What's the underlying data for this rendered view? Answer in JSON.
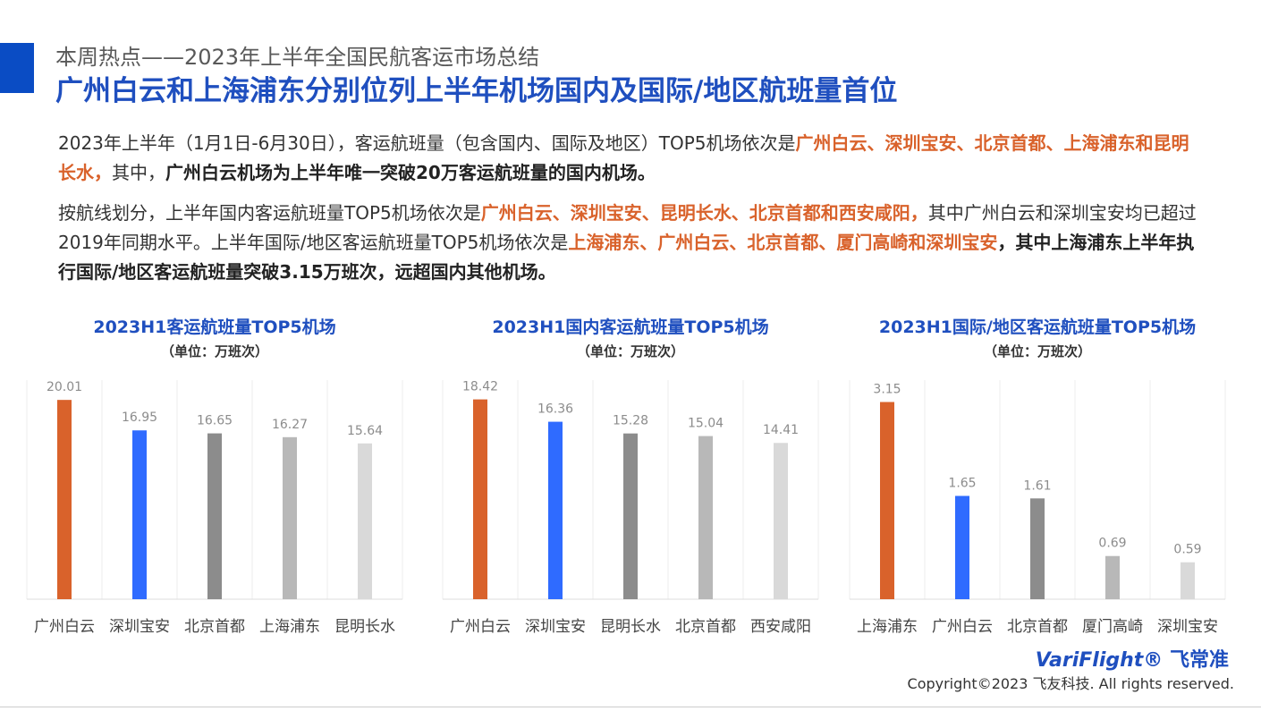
{
  "header": {
    "subtitle": "本周热点——2023年上半年全国民航客运市场总结",
    "title": "广州白云和上海浦东分别位列上半年机场国内及国际/地区航班量首位"
  },
  "paragraphs": [
    [
      {
        "text": "2023年上半年（1月1日-6月30日），客运航班量（包含国内、国际及地区）TOP5机场依次是",
        "style": "plain"
      },
      {
        "text": "广州白云、深圳宝安、北京首都、上海浦东和昆明长水，",
        "style": "highlight"
      },
      {
        "text": "其中，",
        "style": "plain"
      },
      {
        "text": "广州白云机场为上半年唯一突破20万客运航班量的国内机场。",
        "style": "bold"
      }
    ],
    [
      {
        "text": "按航线划分，上半年国内客运航班量TOP5机场依次是",
        "style": "plain"
      },
      {
        "text": "广州白云、深圳宝安、昆明长水、北京首都和西安咸阳，",
        "style": "highlight"
      },
      {
        "text": "其中广州白云和深圳宝安均已超过2019年同期水平。上半年国际/地区客运航班量TOP5机场依次是",
        "style": "plain"
      },
      {
        "text": "上海浦东、广州白云、北京首都、厦门高崎和深圳宝安",
        "style": "highlight"
      },
      {
        "text": "，其中上海浦东上半年执行国际/地区客运航班量突破3.15万班次，远超国内其他机场。",
        "style": "bold"
      }
    ]
  ],
  "chart_data": [
    {
      "type": "bar",
      "title": "2023H1客运航班量TOP5机场",
      "subtitle": "（单位：万班次）",
      "categories": [
        "广州白云",
        "深圳宝安",
        "北京首都",
        "上海浦东",
        "昆明长水"
      ],
      "values": [
        20.01,
        16.95,
        16.65,
        16.27,
        15.64
      ],
      "colors": [
        "#d9622b",
        "#2f6bff",
        "#8c8c8c",
        "#b8b8b8",
        "#d9d9d9"
      ],
      "ylim": [
        0,
        22
      ]
    },
    {
      "type": "bar",
      "title": "2023H1国内客运航班量TOP5机场",
      "subtitle": "（单位：万班次）",
      "categories": [
        "广州白云",
        "深圳宝安",
        "昆明长水",
        "北京首都",
        "西安咸阳"
      ],
      "values": [
        18.42,
        16.36,
        15.28,
        15.04,
        14.41
      ],
      "colors": [
        "#d9622b",
        "#2f6bff",
        "#8c8c8c",
        "#b8b8b8",
        "#d9d9d9"
      ],
      "ylim": [
        0,
        20.2
      ]
    },
    {
      "type": "bar",
      "title": "2023H1国际/地区客运航班量TOP5机场",
      "subtitle": "（单位：万班次）",
      "categories": [
        "上海浦东",
        "广州白云",
        "北京首都",
        "厦门高崎",
        "深圳宝安"
      ],
      "values": [
        3.15,
        1.65,
        1.61,
        0.69,
        0.59
      ],
      "colors": [
        "#d9622b",
        "#2f6bff",
        "#8c8c8c",
        "#b8b8b8",
        "#d9d9d9"
      ],
      "ylim": [
        0,
        3.5
      ]
    }
  ],
  "footer": {
    "logo": "VariFlight®",
    "logo_cn": "飞常准",
    "copyright": "Copyright©2023 飞友科技. All rights reserved."
  }
}
